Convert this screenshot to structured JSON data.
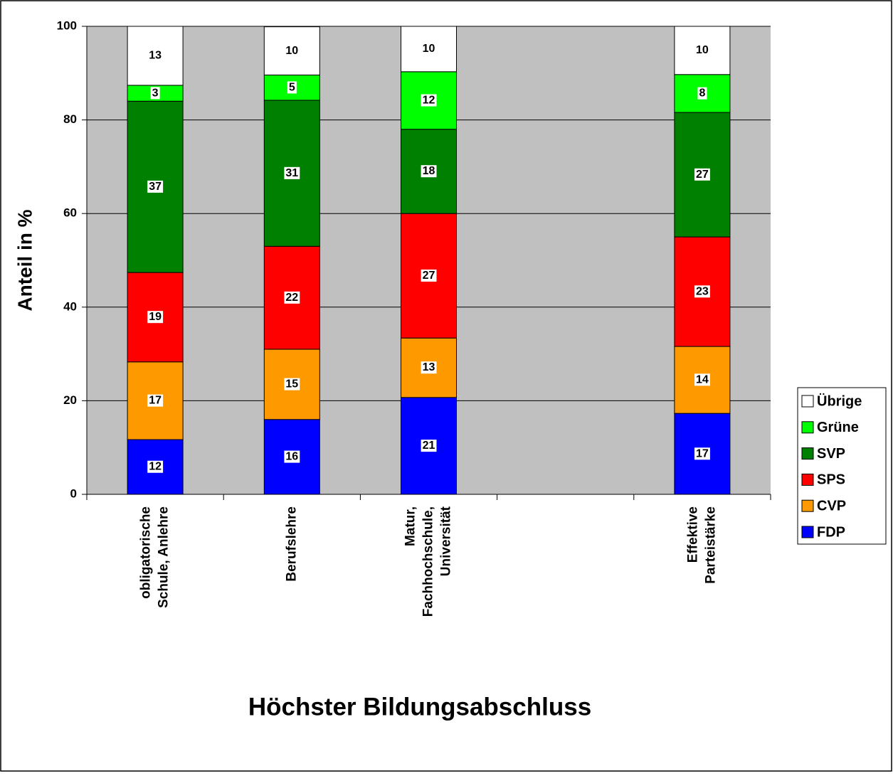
{
  "chart_data": {
    "type": "stacked_bar",
    "x_label": "Höchster Bildungsabschluss",
    "y_label": "Anteil in %",
    "categories": [
      [
        "obligatorische",
        "Schule, Anlehre"
      ],
      [
        "Berufslehre"
      ],
      [
        "Matur,",
        "Fachhochschule,",
        "Universität"
      ],
      null,
      [
        "Effektive",
        "Parteistärke"
      ]
    ],
    "series": [
      {
        "name": "FDP",
        "color": "#0000ff",
        "values": [
          11.7,
          16.0,
          20.7,
          null,
          17.3
        ],
        "value_labels": [
          "12",
          "16",
          "21",
          null,
          "17"
        ]
      },
      {
        "name": "CVP",
        "color": "#ff9900",
        "values": [
          16.6,
          15.0,
          12.7,
          null,
          14.3
        ],
        "value_labels": [
          "17",
          "15",
          "13",
          null,
          "14"
        ]
      },
      {
        "name": "SPS",
        "color": "#ff0000",
        "values": [
          19.1,
          22.0,
          26.6,
          null,
          23.4
        ],
        "value_labels": [
          "19",
          "22",
          "27",
          null,
          "23"
        ]
      },
      {
        "name": "SVP",
        "color": "#008000",
        "values": [
          36.6,
          31.2,
          18.0,
          null,
          26.6
        ],
        "value_labels": [
          "37",
          "31",
          "18",
          null,
          "27"
        ]
      },
      {
        "name": "Grüne",
        "color": "#00ff00",
        "values": [
          3.4,
          5.4,
          12.3,
          null,
          8.1
        ],
        "value_labels": [
          "3",
          "5",
          "12",
          null,
          "8"
        ]
      },
      {
        "name": "Übrige",
        "color": "#ffffff",
        "values": [
          12.6,
          10.3,
          9.7,
          null,
          10.3
        ],
        "value_labels": [
          "13",
          "10",
          "10",
          null,
          "10"
        ]
      }
    ],
    "ylim": [
      0,
      100
    ],
    "yticks": [
      0,
      20,
      40,
      60,
      80,
      100
    ],
    "grid": true,
    "legend": "right"
  }
}
